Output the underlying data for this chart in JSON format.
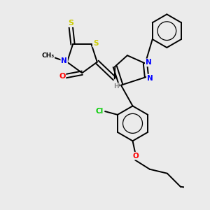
{
  "background_color": "#ebebeb",
  "figsize": [
    3.0,
    3.0
  ],
  "dpi": 100,
  "atom_colors": {
    "S": "#cccc00",
    "N": "#0000ff",
    "O": "#ff0000",
    "Cl": "#00cc00",
    "C": "#000000",
    "H": "#888888"
  },
  "bond_color": "#000000",
  "bond_width": 1.4,
  "font_size_atom": 7.5
}
